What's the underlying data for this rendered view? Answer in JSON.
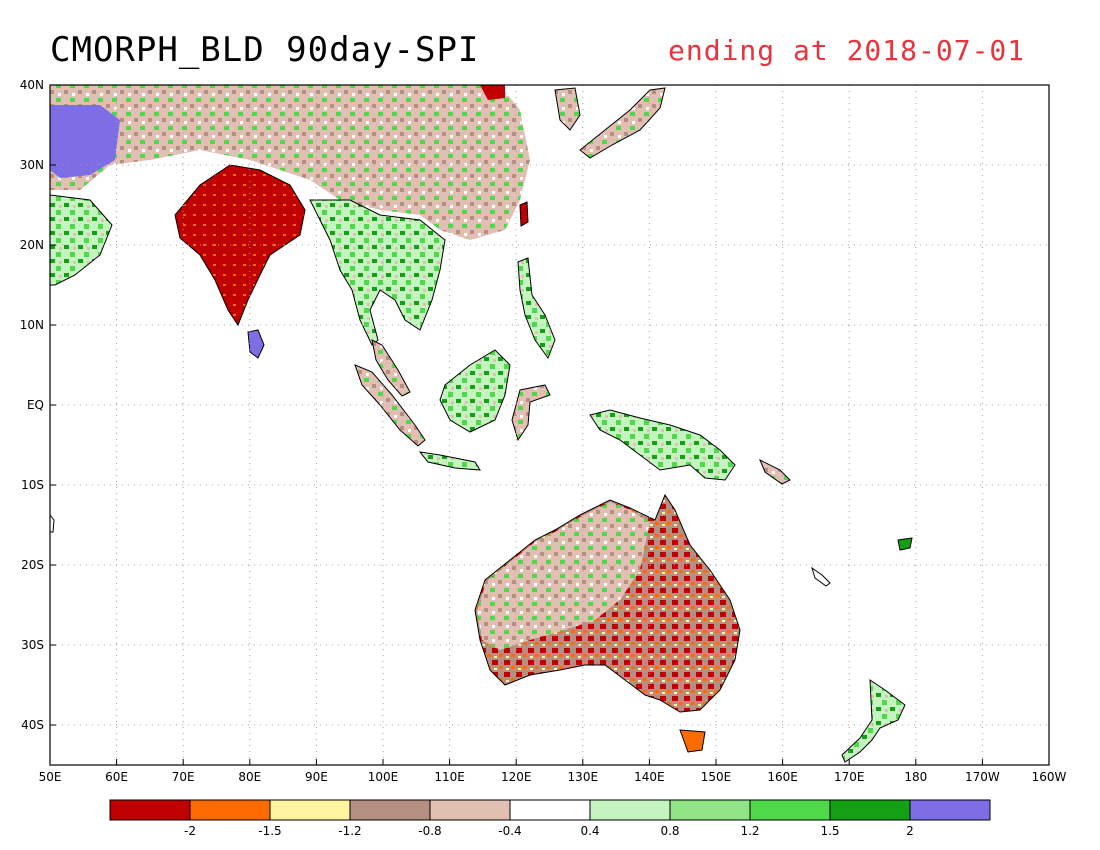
{
  "title": "CMORPH_BLD 90day-SPI",
  "subtitle": "ending at 2018-07-01",
  "colors": {
    "title": "#000000",
    "subtitle": "#e8343a",
    "ocean": "#ffffff",
    "coast": "#000000",
    "grid": "#a0a0a0"
  },
  "axes": {
    "lon_labels": [
      "50E",
      "60E",
      "70E",
      "80E",
      "90E",
      "100E",
      "110E",
      "120E",
      "130E",
      "140E",
      "150E",
      "160E",
      "170E",
      "180",
      "170W",
      "160W"
    ],
    "lat_labels": [
      "40N",
      "30N",
      "20N",
      "10N",
      "EQ",
      "10S",
      "20S",
      "30S",
      "40S"
    ]
  },
  "legend": {
    "colors": [
      "#c00000",
      "#ff6a00",
      "#fff5a0",
      "#b49082",
      "#e2bfb3",
      "#ffffff",
      "#c4f5c0",
      "#8fe586",
      "#4fd84a",
      "#14a014",
      "#7d6ee6"
    ],
    "labels": [
      "-2",
      "-1.5",
      "-1.2",
      "-0.8",
      "-0.4",
      "0.4",
      "0.8",
      "1.2",
      "1.5",
      "2"
    ]
  },
  "land_colors": [
    "#c00000",
    "#ff6a00",
    "#fff5a0",
    "#b49082",
    "#e2bfb3",
    "#ffffff",
    "#c4f5c0",
    "#8fe586",
    "#4fd84a",
    "#14a014",
    "#7d6ee6"
  ]
}
